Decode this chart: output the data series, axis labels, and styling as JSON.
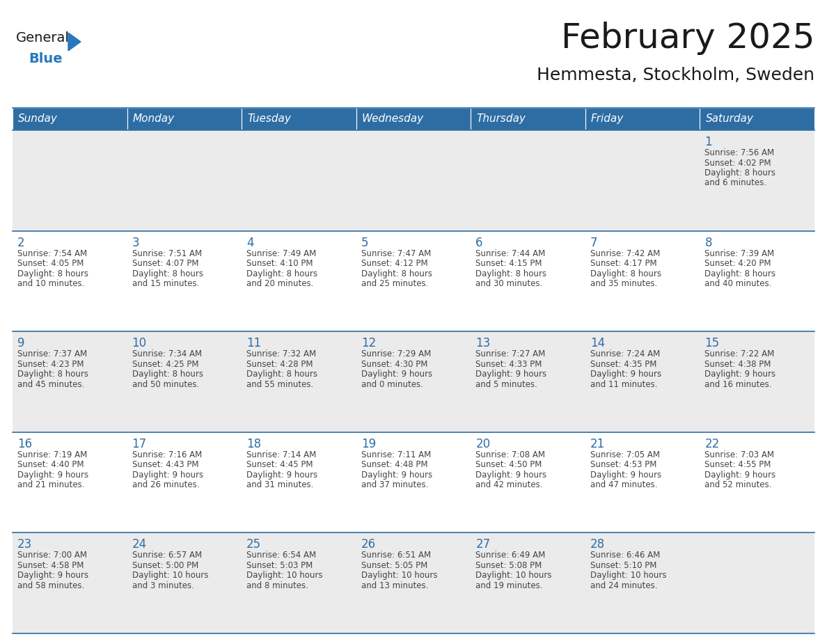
{
  "title": "February 2025",
  "subtitle": "Hemmesta, Stockholm, Sweden",
  "header_bg": "#2E6DA4",
  "header_text_color": "#FFFFFF",
  "cell_bg_light": "#EBEBEB",
  "cell_bg_white": "#FFFFFF",
  "day_headers": [
    "Sunday",
    "Monday",
    "Tuesday",
    "Wednesday",
    "Thursday",
    "Friday",
    "Saturday"
  ],
  "title_color": "#1a1a1a",
  "subtitle_color": "#1a1a1a",
  "day_number_color": "#2E6DA4",
  "cell_text_color": "#444444",
  "grid_color": "#2E6DA4",
  "logo_general_color": "#1a1a1a",
  "logo_blue_color": "#2878BE",
  "calendar_data": [
    [
      null,
      null,
      null,
      null,
      null,
      null,
      {
        "day": 1,
        "sunrise": "7:56 AM",
        "sunset": "4:02 PM",
        "daylight": "8 hours",
        "daylight2": "and 6 minutes."
      }
    ],
    [
      {
        "day": 2,
        "sunrise": "7:54 AM",
        "sunset": "4:05 PM",
        "daylight": "8 hours",
        "daylight2": "and 10 minutes."
      },
      {
        "day": 3,
        "sunrise": "7:51 AM",
        "sunset": "4:07 PM",
        "daylight": "8 hours",
        "daylight2": "and 15 minutes."
      },
      {
        "day": 4,
        "sunrise": "7:49 AM",
        "sunset": "4:10 PM",
        "daylight": "8 hours",
        "daylight2": "and 20 minutes."
      },
      {
        "day": 5,
        "sunrise": "7:47 AM",
        "sunset": "4:12 PM",
        "daylight": "8 hours",
        "daylight2": "and 25 minutes."
      },
      {
        "day": 6,
        "sunrise": "7:44 AM",
        "sunset": "4:15 PM",
        "daylight": "8 hours",
        "daylight2": "and 30 minutes."
      },
      {
        "day": 7,
        "sunrise": "7:42 AM",
        "sunset": "4:17 PM",
        "daylight": "8 hours",
        "daylight2": "and 35 minutes."
      },
      {
        "day": 8,
        "sunrise": "7:39 AM",
        "sunset": "4:20 PM",
        "daylight": "8 hours",
        "daylight2": "and 40 minutes."
      }
    ],
    [
      {
        "day": 9,
        "sunrise": "7:37 AM",
        "sunset": "4:23 PM",
        "daylight": "8 hours",
        "daylight2": "and 45 minutes."
      },
      {
        "day": 10,
        "sunrise": "7:34 AM",
        "sunset": "4:25 PM",
        "daylight": "8 hours",
        "daylight2": "and 50 minutes."
      },
      {
        "day": 11,
        "sunrise": "7:32 AM",
        "sunset": "4:28 PM",
        "daylight": "8 hours",
        "daylight2": "and 55 minutes."
      },
      {
        "day": 12,
        "sunrise": "7:29 AM",
        "sunset": "4:30 PM",
        "daylight": "9 hours",
        "daylight2": "and 0 minutes."
      },
      {
        "day": 13,
        "sunrise": "7:27 AM",
        "sunset": "4:33 PM",
        "daylight": "9 hours",
        "daylight2": "and 5 minutes."
      },
      {
        "day": 14,
        "sunrise": "7:24 AM",
        "sunset": "4:35 PM",
        "daylight": "9 hours",
        "daylight2": "and 11 minutes."
      },
      {
        "day": 15,
        "sunrise": "7:22 AM",
        "sunset": "4:38 PM",
        "daylight": "9 hours",
        "daylight2": "and 16 minutes."
      }
    ],
    [
      {
        "day": 16,
        "sunrise": "7:19 AM",
        "sunset": "4:40 PM",
        "daylight": "9 hours",
        "daylight2": "and 21 minutes."
      },
      {
        "day": 17,
        "sunrise": "7:16 AM",
        "sunset": "4:43 PM",
        "daylight": "9 hours",
        "daylight2": "and 26 minutes."
      },
      {
        "day": 18,
        "sunrise": "7:14 AM",
        "sunset": "4:45 PM",
        "daylight": "9 hours",
        "daylight2": "and 31 minutes."
      },
      {
        "day": 19,
        "sunrise": "7:11 AM",
        "sunset": "4:48 PM",
        "daylight": "9 hours",
        "daylight2": "and 37 minutes."
      },
      {
        "day": 20,
        "sunrise": "7:08 AM",
        "sunset": "4:50 PM",
        "daylight": "9 hours",
        "daylight2": "and 42 minutes."
      },
      {
        "day": 21,
        "sunrise": "7:05 AM",
        "sunset": "4:53 PM",
        "daylight": "9 hours",
        "daylight2": "and 47 minutes."
      },
      {
        "day": 22,
        "sunrise": "7:03 AM",
        "sunset": "4:55 PM",
        "daylight": "9 hours",
        "daylight2": "and 52 minutes."
      }
    ],
    [
      {
        "day": 23,
        "sunrise": "7:00 AM",
        "sunset": "4:58 PM",
        "daylight": "9 hours",
        "daylight2": "and 58 minutes."
      },
      {
        "day": 24,
        "sunrise": "6:57 AM",
        "sunset": "5:00 PM",
        "daylight": "10 hours",
        "daylight2": "and 3 minutes."
      },
      {
        "day": 25,
        "sunrise": "6:54 AM",
        "sunset": "5:03 PM",
        "daylight": "10 hours",
        "daylight2": "and 8 minutes."
      },
      {
        "day": 26,
        "sunrise": "6:51 AM",
        "sunset": "5:05 PM",
        "daylight": "10 hours",
        "daylight2": "and 13 minutes."
      },
      {
        "day": 27,
        "sunrise": "6:49 AM",
        "sunset": "5:08 PM",
        "daylight": "10 hours",
        "daylight2": "and 19 minutes."
      },
      {
        "day": 28,
        "sunrise": "6:46 AM",
        "sunset": "5:10 PM",
        "daylight": "10 hours",
        "daylight2": "and 24 minutes."
      },
      null
    ]
  ]
}
